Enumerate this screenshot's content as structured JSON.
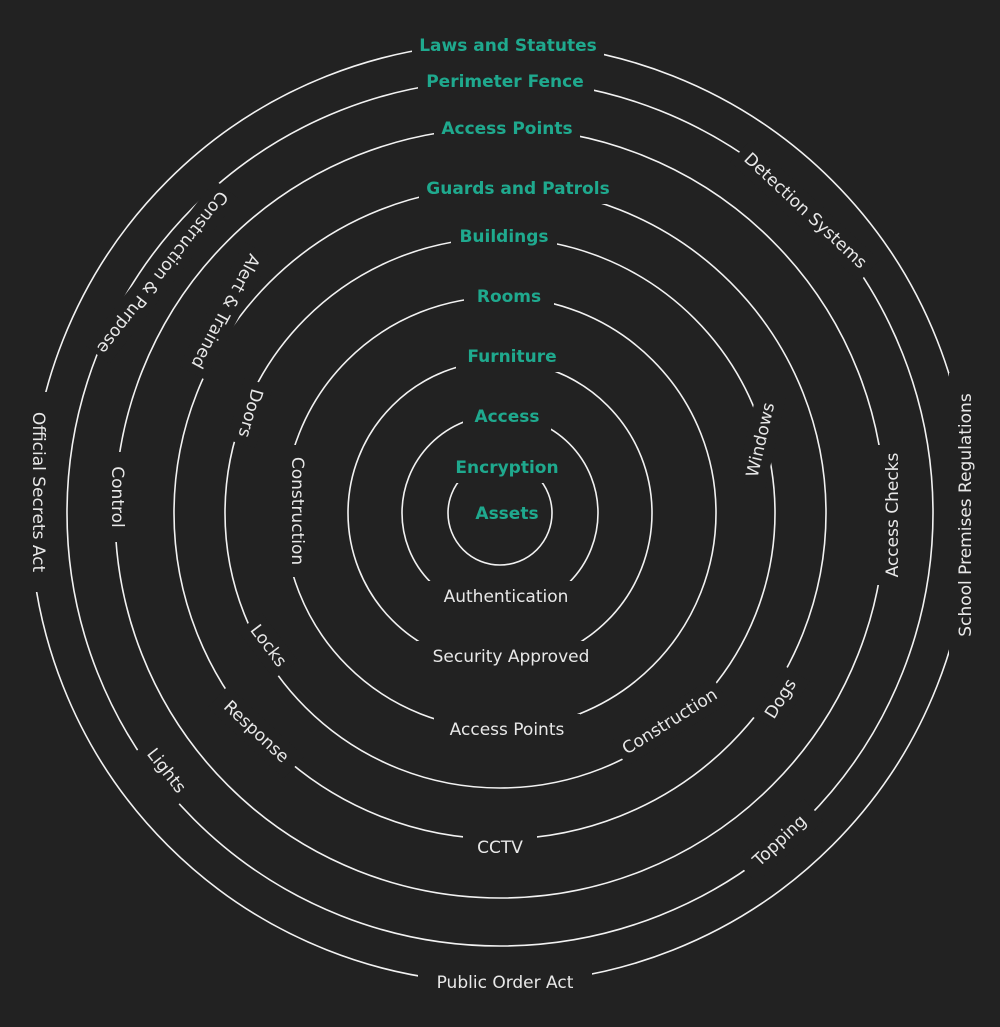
{
  "diagram": {
    "rings": [
      {
        "title": "Laws and Statutes",
        "labels": [
          "Detection Systems",
          "School Premises Regulations",
          "Public Order Act",
          "Official Secrets Act"
        ]
      },
      {
        "title": "Perimeter Fence",
        "labels": [
          "Topping",
          "Lights",
          "Construction & Purpose"
        ]
      },
      {
        "title": "Access Points",
        "labels": [
          "Access Checks",
          "CCTV",
          "Control"
        ]
      },
      {
        "title": "Guards and Patrols",
        "labels": [
          "Dogs",
          "Response",
          "Alert & Trained"
        ]
      },
      {
        "title": "Buildings",
        "labels": [
          "Windows",
          "Construction",
          "Locks",
          "Doors"
        ]
      },
      {
        "title": "Rooms",
        "labels": [
          "Access Points",
          "Construction"
        ]
      },
      {
        "title": "Furniture",
        "labels": [
          "Security Approved"
        ]
      },
      {
        "title": "Access",
        "labels": [
          "Authentication"
        ]
      },
      {
        "title": "Encryption",
        "labels": []
      },
      {
        "title": "Assets",
        "labels": []
      }
    ]
  },
  "colors": {
    "background": "#222222",
    "ring": "#f2f2f2",
    "title": "#1fa98e",
    "label": "#e8e8e8"
  }
}
